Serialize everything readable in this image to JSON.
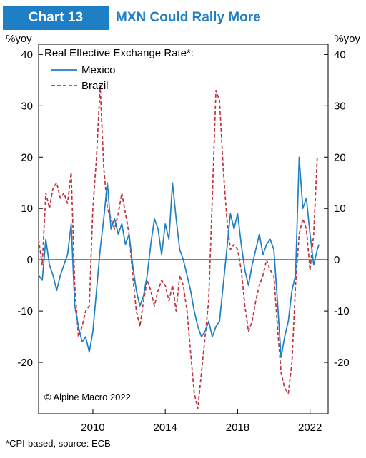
{
  "header": {
    "chart_number": "Chart 13",
    "title": "MXN Could Rally More"
  },
  "footnote": "*CPI-based, source: ECB",
  "chart_data": {
    "type": "line",
    "title": "Real Effective Exchange Rate*:",
    "unit_left": "%yoy",
    "unit_right": "%yoy",
    "copyright": "© Alpine Macro 2022",
    "xlim": [
      2007.0,
      2023.0
    ],
    "ylim": [
      -30,
      42
    ],
    "y_ticks": [
      -20,
      -10,
      0,
      10,
      20,
      30,
      40
    ],
    "y_tick_labels": [
      "-20",
      "-10",
      "0",
      "10",
      "20",
      "30",
      "40"
    ],
    "x_ticks": [
      2010,
      2014,
      2018,
      2022
    ],
    "x_tick_labels": [
      "2010",
      "2014",
      "2018",
      "2022"
    ],
    "grid": false,
    "legend": "top-left",
    "series": [
      {
        "name": "Mexico",
        "color": "#1f7fc4",
        "dash": "solid",
        "points": [
          [
            2007.0,
            -3
          ],
          [
            2007.2,
            -4
          ],
          [
            2007.4,
            4
          ],
          [
            2007.6,
            -1
          ],
          [
            2007.8,
            -3
          ],
          [
            2008.0,
            -6
          ],
          [
            2008.2,
            -3
          ],
          [
            2008.4,
            -1
          ],
          [
            2008.6,
            1
          ],
          [
            2008.8,
            7
          ],
          [
            2009.0,
            -9
          ],
          [
            2009.2,
            -13
          ],
          [
            2009.4,
            -16
          ],
          [
            2009.6,
            -15
          ],
          [
            2009.8,
            -18
          ],
          [
            2010.0,
            -14
          ],
          [
            2010.2,
            -6
          ],
          [
            2010.4,
            2
          ],
          [
            2010.6,
            8
          ],
          [
            2010.8,
            15
          ],
          [
            2011.0,
            6
          ],
          [
            2011.2,
            8
          ],
          [
            2011.4,
            5
          ],
          [
            2011.6,
            7
          ],
          [
            2011.8,
            3
          ],
          [
            2012.0,
            5
          ],
          [
            2012.2,
            -1
          ],
          [
            2012.4,
            -6
          ],
          [
            2012.6,
            -9
          ],
          [
            2012.8,
            -7
          ],
          [
            2013.0,
            -3
          ],
          [
            2013.2,
            3
          ],
          [
            2013.4,
            8
          ],
          [
            2013.6,
            6
          ],
          [
            2013.8,
            1
          ],
          [
            2014.0,
            7
          ],
          [
            2014.2,
            4
          ],
          [
            2014.4,
            15
          ],
          [
            2014.6,
            8
          ],
          [
            2014.8,
            2
          ],
          [
            2015.0,
            0
          ],
          [
            2015.2,
            -3
          ],
          [
            2015.4,
            -6
          ],
          [
            2015.6,
            -10
          ],
          [
            2015.8,
            -13
          ],
          [
            2016.0,
            -15
          ],
          [
            2016.2,
            -14
          ],
          [
            2016.4,
            -12
          ],
          [
            2016.6,
            -15
          ],
          [
            2016.8,
            -13
          ],
          [
            2017.0,
            -12
          ],
          [
            2017.2,
            -5
          ],
          [
            2017.4,
            2
          ],
          [
            2017.6,
            9
          ],
          [
            2017.8,
            6
          ],
          [
            2018.0,
            9
          ],
          [
            2018.2,
            3
          ],
          [
            2018.4,
            -2
          ],
          [
            2018.6,
            -5
          ],
          [
            2018.8,
            -1
          ],
          [
            2019.0,
            2
          ],
          [
            2019.2,
            5
          ],
          [
            2019.4,
            1
          ],
          [
            2019.6,
            3
          ],
          [
            2019.8,
            4
          ],
          [
            2020.0,
            2
          ],
          [
            2020.2,
            -8
          ],
          [
            2020.4,
            -19
          ],
          [
            2020.6,
            -15
          ],
          [
            2020.8,
            -12
          ],
          [
            2021.0,
            -6
          ],
          [
            2021.2,
            -3
          ],
          [
            2021.4,
            20
          ],
          [
            2021.6,
            10
          ],
          [
            2021.8,
            12
          ],
          [
            2022.0,
            5
          ],
          [
            2022.2,
            -1
          ],
          [
            2022.4,
            2
          ],
          [
            2022.5,
            3
          ]
        ]
      },
      {
        "name": "Brazil",
        "color": "#c0323e",
        "dash": "5 3",
        "points": [
          [
            2007.0,
            4
          ],
          [
            2007.2,
            -1
          ],
          [
            2007.4,
            13
          ],
          [
            2007.6,
            10
          ],
          [
            2007.8,
            14
          ],
          [
            2008.0,
            15
          ],
          [
            2008.2,
            12
          ],
          [
            2008.4,
            13
          ],
          [
            2008.6,
            11
          ],
          [
            2008.8,
            17
          ],
          [
            2009.0,
            -5
          ],
          [
            2009.2,
            -15
          ],
          [
            2009.4,
            -13
          ],
          [
            2009.6,
            -10
          ],
          [
            2009.8,
            -9
          ],
          [
            2010.0,
            10
          ],
          [
            2010.2,
            20
          ],
          [
            2010.4,
            34
          ],
          [
            2010.6,
            18
          ],
          [
            2010.8,
            10
          ],
          [
            2011.0,
            8
          ],
          [
            2011.2,
            6
          ],
          [
            2011.4,
            9
          ],
          [
            2011.6,
            13
          ],
          [
            2011.8,
            9
          ],
          [
            2012.0,
            5
          ],
          [
            2012.2,
            -3
          ],
          [
            2012.4,
            -10
          ],
          [
            2012.6,
            -13
          ],
          [
            2012.8,
            -8
          ],
          [
            2013.0,
            -4
          ],
          [
            2013.2,
            -6
          ],
          [
            2013.4,
            -9
          ],
          [
            2013.6,
            -6
          ],
          [
            2013.8,
            -4
          ],
          [
            2014.0,
            -5
          ],
          [
            2014.2,
            -8
          ],
          [
            2014.4,
            -5
          ],
          [
            2014.6,
            -10
          ],
          [
            2014.8,
            -3
          ],
          [
            2015.0,
            -5
          ],
          [
            2015.2,
            -10
          ],
          [
            2015.4,
            -18
          ],
          [
            2015.6,
            -26
          ],
          [
            2015.8,
            -29
          ],
          [
            2016.0,
            -22
          ],
          [
            2016.2,
            -15
          ],
          [
            2016.4,
            -8
          ],
          [
            2016.6,
            12
          ],
          [
            2016.8,
            33
          ],
          [
            2017.0,
            31
          ],
          [
            2017.2,
            18
          ],
          [
            2017.4,
            8
          ],
          [
            2017.6,
            2
          ],
          [
            2017.8,
            3
          ],
          [
            2018.0,
            2
          ],
          [
            2018.2,
            -2
          ],
          [
            2018.4,
            -9
          ],
          [
            2018.6,
            -14
          ],
          [
            2018.8,
            -12
          ],
          [
            2019.0,
            -8
          ],
          [
            2019.2,
            -5
          ],
          [
            2019.4,
            -3
          ],
          [
            2019.6,
            0
          ],
          [
            2019.8,
            -2
          ],
          [
            2020.0,
            -3
          ],
          [
            2020.2,
            -13
          ],
          [
            2020.4,
            -22
          ],
          [
            2020.6,
            -25
          ],
          [
            2020.8,
            -26
          ],
          [
            2021.0,
            -20
          ],
          [
            2021.2,
            -5
          ],
          [
            2021.4,
            5
          ],
          [
            2021.6,
            8
          ],
          [
            2021.8,
            6
          ],
          [
            2022.0,
            -2
          ],
          [
            2022.2,
            5
          ],
          [
            2022.4,
            20
          ]
        ]
      }
    ]
  }
}
